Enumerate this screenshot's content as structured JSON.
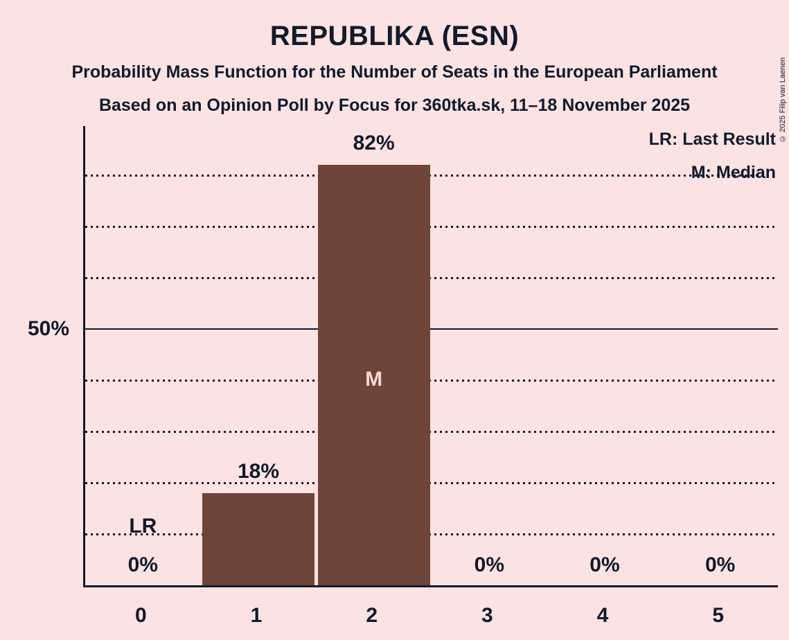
{
  "title": "REPUBLIKA (ESN)",
  "subtitles": [
    "Probability Mass Function for the Number of Seats in the European Parliament",
    "Based on an Opinion Poll by Focus for 360tka.sk, 11–18 November 2025"
  ],
  "copyright": "© 2025 Filip van Laenen",
  "legend": {
    "last_result": "LR: Last Result",
    "median": "M: Median"
  },
  "colors": {
    "background": "#fbe2e3",
    "bar": "#6f4539",
    "text": "#121a2c",
    "inside_bar_text": "#f8dadc"
  },
  "chart_data": {
    "type": "bar",
    "categories": [
      "0",
      "1",
      "2",
      "3",
      "4",
      "5"
    ],
    "values": [
      0,
      18,
      82,
      0,
      0,
      0
    ],
    "bar_labels": [
      "0%",
      "18%",
      "82%",
      "0%",
      "0%",
      "0%"
    ],
    "annotations": {
      "last_result": {
        "category": "0",
        "label": "LR"
      },
      "median": {
        "category": "2",
        "label": "M"
      }
    },
    "y_axis_tick": {
      "pct": 50,
      "label": "50%"
    },
    "gridlines": {
      "dotted_pct": [
        10,
        20,
        30,
        40,
        60,
        70,
        80
      ],
      "solid_pct": [
        50
      ]
    },
    "ylim": [
      0,
      89.6
    ],
    "xlabel": "",
    "ylabel": "",
    "grid": true,
    "legend_position": "top-right"
  }
}
